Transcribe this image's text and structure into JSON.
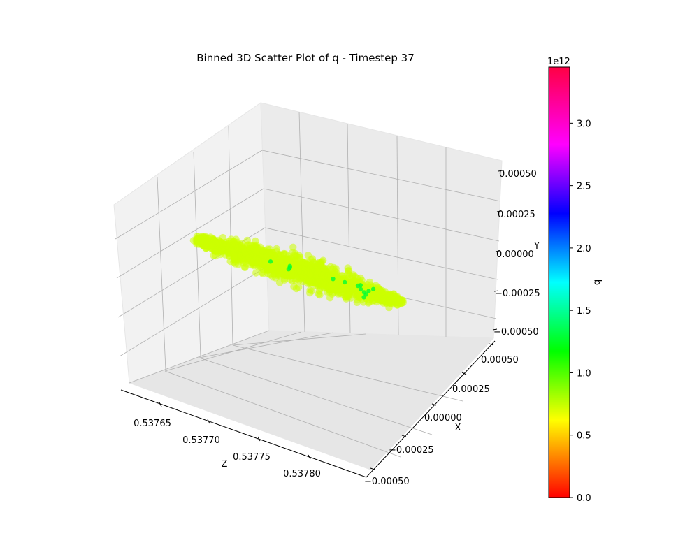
{
  "chart_data": {
    "type": "scatter",
    "projection": "3d",
    "title": "Binned 3D Scatter Plot of q - Timestep 37",
    "axes": {
      "z": {
        "label": "Z",
        "range": [
          0.53762,
          0.53783
        ],
        "ticks": [
          "0.53765",
          "0.53770",
          "0.53775",
          "0.53780"
        ]
      },
      "x": {
        "label": "X",
        "range": [
          -0.0005,
          0.0005
        ],
        "ticks": [
          "0.00050",
          "0.00025",
          "0.00000",
          "−0.00025",
          "−0.00050"
        ]
      },
      "y": {
        "label": "Y",
        "range": [
          -0.0005,
          0.0005
        ],
        "ticks": [
          "0.00050",
          "0.00025",
          "0.00000",
          "−0.00025",
          "−0.00050"
        ]
      }
    },
    "grid": true,
    "colorbar": {
      "label": "q",
      "colormap": "gist_rainbow",
      "range": [
        0,
        3450000000000.0
      ],
      "offset_text": "1e12",
      "ticks": [
        "0.0",
        "0.5",
        "1.0",
        "1.5",
        "2.0",
        "2.5",
        "3.0"
      ]
    },
    "point_colors": {
      "dominant": "#ccff00",
      "sparse": "#00ff33"
    },
    "cluster": {
      "z_range": [
        0.53764,
        0.53781
      ],
      "x_range": [
        -0.0002,
        0.0002
      ],
      "y_range": [
        -0.0001,
        0.0001
      ],
      "dominant_q": 850000000000.0,
      "sparse_q": 1200000000000.0,
      "approx_points": 1400
    }
  }
}
